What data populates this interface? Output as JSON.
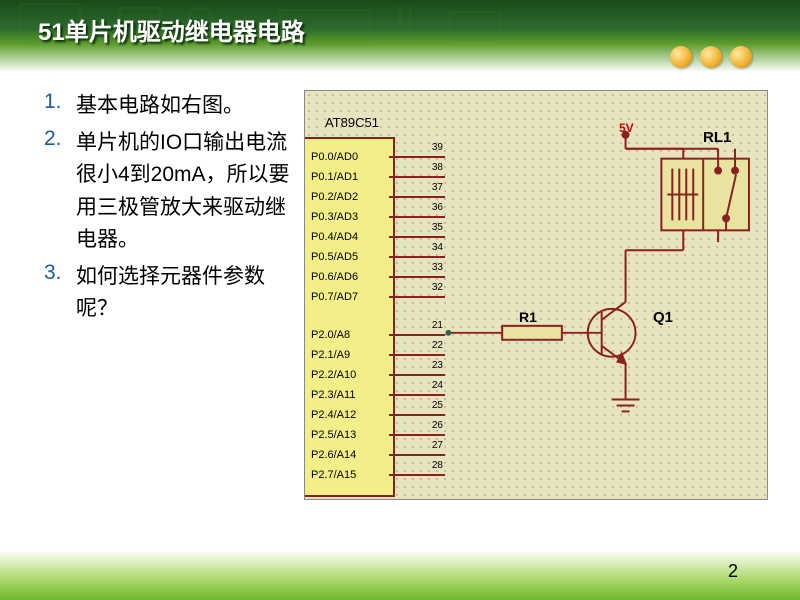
{
  "title": "51单片机驱动继电器电路",
  "dots_count": 3,
  "list": [
    {
      "num": "1.",
      "num_color": "#1a5aa8",
      "text": "基本电路如右图。"
    },
    {
      "num": "2.",
      "num_color": "#1a5aa8",
      "text": "单片机的IO口输出电流很小4到20mA，所以要用三极管放大来驱动继电器。"
    },
    {
      "num": "3.",
      "num_color": "#1a5aa8",
      "text": "如何选择元器件参数呢？"
    }
  ],
  "page_num": "2",
  "schematic": {
    "chip_name": "AT89C51",
    "supply_label": "5V",
    "supply_color": "#cc0000",
    "relay_label": "RL1",
    "resistor_label": "R1",
    "transistor_label": "Q1",
    "pins_group1": [
      {
        "label": "P0.0/AD0",
        "num": "39"
      },
      {
        "label": "P0.1/AD1",
        "num": "38"
      },
      {
        "label": "P0.2/AD2",
        "num": "37"
      },
      {
        "label": "P0.3/AD3",
        "num": "36"
      },
      {
        "label": "P0.4/AD4",
        "num": "35"
      },
      {
        "label": "P0.5/AD5",
        "num": "34"
      },
      {
        "label": "P0.6/AD6",
        "num": "33"
      },
      {
        "label": "P0.7/AD7",
        "num": "32"
      }
    ],
    "pins_group2": [
      {
        "label": "P2.0/A8",
        "num": "21"
      },
      {
        "label": "P2.1/A9",
        "num": "22"
      },
      {
        "label": "P2.2/A10",
        "num": "23"
      },
      {
        "label": "P2.3/A11",
        "num": "24"
      },
      {
        "label": "P2.4/A12",
        "num": "25"
      },
      {
        "label": "P2.5/A13",
        "num": "26"
      },
      {
        "label": "P2.6/A14",
        "num": "27"
      },
      {
        "label": "P2.7/A15",
        "num": "28"
      }
    ],
    "wire_color": "#8b2020",
    "component_fill": "#e8e4a0",
    "grid_bg": "#e8e4c0",
    "chip_fill": "#f2ee88"
  }
}
